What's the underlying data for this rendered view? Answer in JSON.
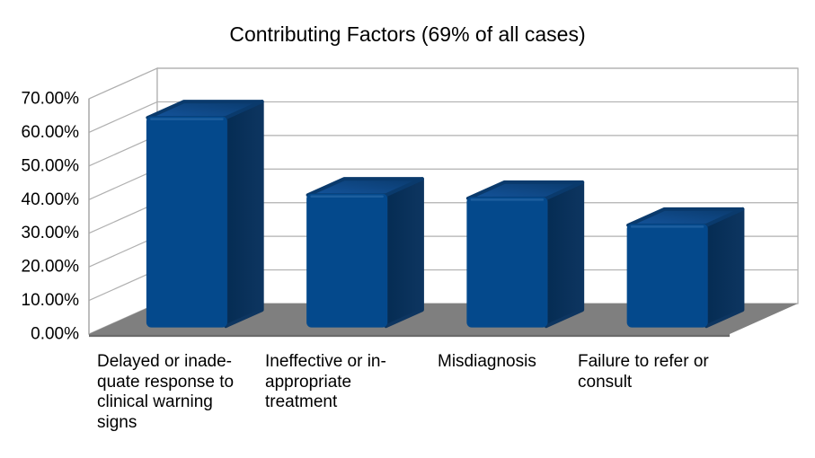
{
  "chart_data": {
    "type": "bar",
    "style": "3d-column",
    "title": "Contributing Factors (69% of all cases)",
    "categories": [
      "Delayed or inadequate response to clinical warning signs",
      "Ineffective or inappropriate treatment",
      "Misdiagnosis",
      "Failure to refer or consult"
    ],
    "category_label_lines": [
      [
        "Delayed or inade-",
        "quate response to",
        "clinical warning",
        "signs"
      ],
      [
        "Ineffective or in-",
        "appropriate",
        "treatment"
      ],
      [
        "Misdiagnosis"
      ],
      [
        "Failure to refer or",
        "consult"
      ]
    ],
    "values": [
      62,
      39,
      38,
      30
    ],
    "value_unit": "percent",
    "xlabel": "",
    "ylabel": "",
    "ylim": [
      0,
      70
    ],
    "y_tick_step": 10,
    "y_tick_labels": [
      "0.00%",
      "10.00%",
      "20.00%",
      "30.00%",
      "40.00%",
      "50.00%",
      "60.00%",
      "70.00%"
    ],
    "grid": true,
    "legend": "none",
    "colors": {
      "bar_front": "#04498c",
      "bar_side_dark": "#052c53",
      "bar_side_light": "#0d3560",
      "bar_top_light": "#14549c",
      "bar_top_dark": "#0a3a6c",
      "bar_bevel_highlight": "#2a6aa8",
      "floor": "#7f7f7f",
      "floor_edge": "#6a6a6a",
      "gridline": "#b0b0b0",
      "wall_stroke": "#a9a9a9",
      "background": "#ffffff",
      "text": "#000000"
    }
  }
}
